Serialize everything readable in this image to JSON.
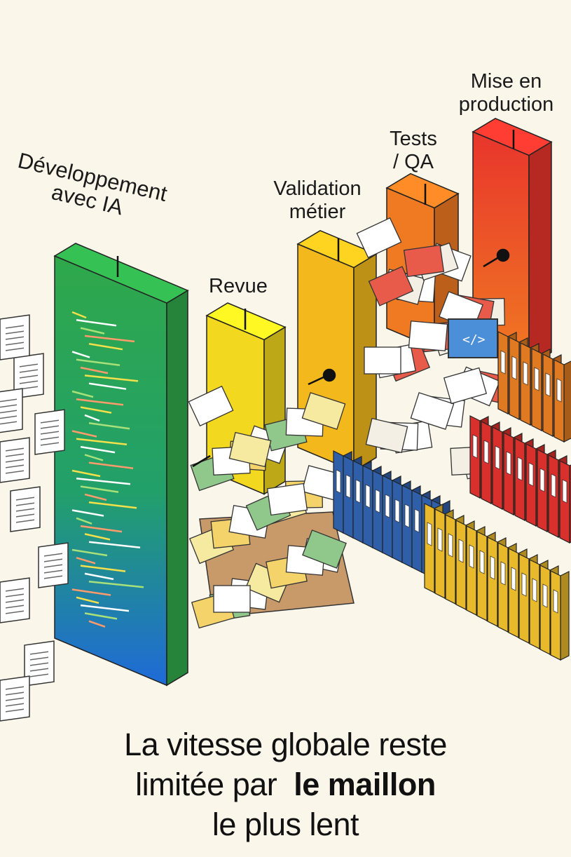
{
  "stages": [
    {
      "label": "Développement avec IA",
      "color": "#2fa84a"
    },
    {
      "label": "Revue",
      "color": "#f2d81e"
    },
    {
      "label": "Validation métier",
      "color": "#f2b81c"
    },
    {
      "label": "Tests / QA",
      "color": "#f07a22"
    },
    {
      "label": "Mise en production",
      "color": "#e8352c"
    }
  ],
  "labels": {
    "dev_line1": "Développement",
    "dev_line2": "avec IA",
    "revue": "Revue",
    "validation_line1": "Validation",
    "validation_line2": "métier",
    "tests_line1": "Tests",
    "tests_line2": "/ QA",
    "prod_line1": "Mise en",
    "prod_line2": "production"
  },
  "caption": {
    "line1": "La vitesse globale reste",
    "line2_a": "limitée par",
    "line2_b": "le  maillon",
    "line3": "le plus lent"
  },
  "binder_colors": [
    "#2f5fa8",
    "#e8b92a",
    "#d8302c",
    "#e07a22"
  ]
}
